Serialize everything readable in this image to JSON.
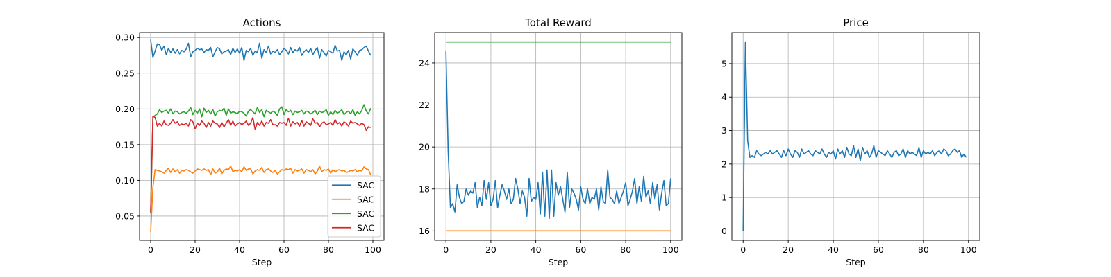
{
  "figure": {
    "background": "#ffffff"
  },
  "chart_data": [
    {
      "type": "line",
      "title": "Actions",
      "xlabel": "Step",
      "ylabel": "",
      "xlim": [
        -5,
        105
      ],
      "ylim": [
        0.016,
        0.307
      ],
      "xticks": [
        0,
        20,
        40,
        60,
        80,
        100
      ],
      "yticks": [
        0.05,
        0.1,
        0.15,
        0.2,
        0.25,
        0.3
      ],
      "ytick_labels": [
        "0.05",
        "0.10",
        "0.15",
        "0.20",
        "0.25",
        "0.30"
      ],
      "grid": true,
      "legend": {
        "placement": "lower-right",
        "entries": [
          "SAC",
          "SAC",
          "SAC",
          "SAC"
        ]
      },
      "series": [
        {
          "name": "SAC",
          "color": "#1f77b4",
          "x_start": 0,
          "x_step": 1,
          "values": [
            0.297,
            0.272,
            0.281,
            0.291,
            0.29,
            0.282,
            0.288,
            0.276,
            0.285,
            0.279,
            0.284,
            0.278,
            0.283,
            0.277,
            0.282,
            0.28,
            0.284,
            0.292,
            0.273,
            0.28,
            0.282,
            0.285,
            0.283,
            0.284,
            0.279,
            0.283,
            0.282,
            0.286,
            0.273,
            0.28,
            0.286,
            0.284,
            0.277,
            0.28,
            0.281,
            0.283,
            0.276,
            0.285,
            0.279,
            0.284,
            0.278,
            0.286,
            0.268,
            0.282,
            0.28,
            0.285,
            0.275,
            0.281,
            0.279,
            0.292,
            0.271,
            0.283,
            0.279,
            0.288,
            0.277,
            0.281,
            0.279,
            0.283,
            0.276,
            0.28,
            0.285,
            0.282,
            0.277,
            0.286,
            0.279,
            0.283,
            0.281,
            0.286,
            0.275,
            0.28,
            0.283,
            0.279,
            0.285,
            0.276,
            0.282,
            0.286,
            0.271,
            0.283,
            0.279,
            0.274,
            0.282,
            0.28,
            0.278,
            0.289,
            0.281,
            0.282,
            0.268,
            0.28,
            0.276,
            0.282,
            0.27,
            0.284,
            0.28,
            0.275,
            0.282,
            0.283,
            0.286,
            0.288,
            0.281,
            0.275
          ]
        },
        {
          "name": "SAC",
          "color": "#ff7f0e",
          "x_start": 0,
          "x_step": 1,
          "values": [
            0.028,
            0.09,
            0.115,
            0.114,
            0.113,
            0.112,
            0.11,
            0.114,
            0.117,
            0.111,
            0.116,
            0.112,
            0.115,
            0.11,
            0.114,
            0.113,
            0.115,
            0.114,
            0.112,
            0.11,
            0.113,
            0.116,
            0.115,
            0.114,
            0.116,
            0.114,
            0.115,
            0.108,
            0.116,
            0.11,
            0.112,
            0.117,
            0.109,
            0.114,
            0.116,
            0.115,
            0.12,
            0.112,
            0.114,
            0.113,
            0.115,
            0.112,
            0.119,
            0.114,
            0.116,
            0.116,
            0.109,
            0.113,
            0.115,
            0.114,
            0.118,
            0.111,
            0.115,
            0.116,
            0.113,
            0.111,
            0.114,
            0.109,
            0.112,
            0.115,
            0.114,
            0.116,
            0.115,
            0.117,
            0.11,
            0.115,
            0.113,
            0.114,
            0.116,
            0.11,
            0.115,
            0.114,
            0.112,
            0.115,
            0.109,
            0.113,
            0.12,
            0.112,
            0.115,
            0.114,
            0.116,
            0.11,
            0.115,
            0.112,
            0.114,
            0.115,
            0.113,
            0.114,
            0.111,
            0.112,
            0.114,
            0.113,
            0.115,
            0.112,
            0.114,
            0.113,
            0.119,
            0.116,
            0.115,
            0.108
          ]
        },
        {
          "name": "SAC",
          "color": "#2ca02c",
          "x_start": 0,
          "x_step": 1,
          "values": [
            0.055,
            0.188,
            0.191,
            0.193,
            0.199,
            0.195,
            0.197,
            0.198,
            0.194,
            0.2,
            0.193,
            0.197,
            0.196,
            0.193,
            0.195,
            0.196,
            0.194,
            0.197,
            0.202,
            0.192,
            0.198,
            0.194,
            0.2,
            0.189,
            0.201,
            0.195,
            0.198,
            0.193,
            0.199,
            0.19,
            0.196,
            0.198,
            0.197,
            0.201,
            0.191,
            0.2,
            0.194,
            0.196,
            0.195,
            0.193,
            0.197,
            0.196,
            0.194,
            0.19,
            0.197,
            0.199,
            0.196,
            0.193,
            0.202,
            0.195,
            0.199,
            0.189,
            0.198,
            0.196,
            0.194,
            0.197,
            0.195,
            0.191,
            0.2,
            0.203,
            0.192,
            0.199,
            0.196,
            0.198,
            0.192,
            0.197,
            0.195,
            0.196,
            0.198,
            0.193,
            0.197,
            0.196,
            0.193,
            0.195,
            0.198,
            0.192,
            0.197,
            0.195,
            0.196,
            0.199,
            0.191,
            0.196,
            0.192,
            0.198,
            0.194,
            0.196,
            0.199,
            0.192,
            0.195,
            0.197,
            0.193,
            0.199,
            0.191,
            0.196,
            0.193,
            0.198,
            0.206,
            0.197,
            0.193,
            0.201
          ]
        },
        {
          "name": "SAC",
          "color": "#d62728",
          "x_start": 0,
          "x_step": 1,
          "values": [
            0.055,
            0.19,
            0.188,
            0.176,
            0.18,
            0.176,
            0.183,
            0.178,
            0.177,
            0.18,
            0.185,
            0.18,
            0.182,
            0.177,
            0.179,
            0.178,
            0.18,
            0.176,
            0.185,
            0.182,
            0.172,
            0.18,
            0.177,
            0.183,
            0.18,
            0.174,
            0.181,
            0.176,
            0.183,
            0.18,
            0.179,
            0.174,
            0.181,
            0.175,
            0.18,
            0.185,
            0.177,
            0.183,
            0.176,
            0.179,
            0.181,
            0.178,
            0.18,
            0.183,
            0.177,
            0.18,
            0.188,
            0.171,
            0.181,
            0.177,
            0.183,
            0.176,
            0.181,
            0.18,
            0.185,
            0.178,
            0.178,
            0.176,
            0.181,
            0.18,
            0.181,
            0.177,
            0.187,
            0.176,
            0.182,
            0.179,
            0.181,
            0.176,
            0.184,
            0.176,
            0.182,
            0.18,
            0.177,
            0.186,
            0.18,
            0.181,
            0.175,
            0.18,
            0.182,
            0.178,
            0.179,
            0.181,
            0.177,
            0.185,
            0.179,
            0.181,
            0.176,
            0.182,
            0.18,
            0.176,
            0.183,
            0.18,
            0.181,
            0.179,
            0.177,
            0.18,
            0.178,
            0.17,
            0.175,
            0.174
          ]
        }
      ]
    },
    {
      "type": "line",
      "title": "Total Reward",
      "xlabel": "Step",
      "ylabel": "",
      "xlim": [
        -5,
        105
      ],
      "ylim": [
        15.55,
        25.45
      ],
      "xticks": [
        0,
        20,
        40,
        60,
        80,
        100
      ],
      "yticks": [
        16,
        18,
        20,
        22,
        24
      ],
      "ytick_labels": [
        "16",
        "18",
        "20",
        "22",
        "24"
      ],
      "grid": true,
      "series": [
        {
          "name": "",
          "color": "#1f77b4",
          "x_start": 0,
          "x_step": 1,
          "values": [
            24.55,
            19.8,
            17.1,
            17.3,
            16.9,
            18.2,
            17.6,
            17.3,
            17.4,
            18.0,
            17.7,
            17.9,
            17.8,
            18.3,
            17.1,
            17.6,
            17.2,
            18.4,
            17.5,
            18.3,
            17.2,
            17.5,
            18.4,
            17.1,
            17.7,
            18.2,
            17.9,
            17.5,
            18.0,
            17.3,
            17.5,
            18.5,
            18.0,
            17.3,
            17.9,
            17.6,
            16.7,
            18.5,
            17.4,
            17.6,
            17.5,
            18.3,
            16.8,
            18.8,
            16.7,
            18.9,
            16.6,
            18.9,
            16.7,
            18.3,
            17.7,
            18.1,
            17.5,
            16.9,
            18.8,
            17.1,
            18.0,
            17.8,
            17.5,
            17.0,
            18.1,
            17.5,
            17.3,
            18.0,
            17.3,
            17.6,
            17.5,
            18.0,
            17.0,
            18.1,
            17.4,
            17.3,
            18.9,
            17.6,
            17.5,
            17.3,
            17.9,
            17.3,
            17.6,
            17.9,
            18.3,
            17.2,
            17.5,
            17.9,
            18.5,
            17.3,
            18.1,
            17.4,
            18.6,
            17.6,
            17.9,
            17.3,
            18.3,
            17.5,
            18.2,
            17.0,
            17.8,
            18.4,
            17.2,
            17.3,
            18.5
          ]
        },
        {
          "name": "",
          "color": "#ff7f0e",
          "x_start": 0,
          "x_step": 100,
          "values": [
            16.0,
            16.0
          ]
        },
        {
          "name": "",
          "color": "#2ca02c",
          "x_start": 0,
          "x_step": 100,
          "values": [
            25.0,
            25.0
          ]
        }
      ]
    },
    {
      "type": "line",
      "title": "Price",
      "xlabel": "Step",
      "ylabel": "",
      "xlim": [
        -5,
        105
      ],
      "ylim": [
        -0.28,
        5.93
      ],
      "xticks": [
        0,
        20,
        40,
        60,
        80,
        100
      ],
      "yticks": [
        0,
        1,
        2,
        3,
        4,
        5
      ],
      "ytick_labels": [
        "0",
        "1",
        "2",
        "3",
        "4",
        "5"
      ],
      "grid": true,
      "series": [
        {
          "name": "",
          "color": "#1f77b4",
          "x_start": 0,
          "x_step": 1,
          "values": [
            0.0,
            5.65,
            2.7,
            2.2,
            2.25,
            2.2,
            2.4,
            2.3,
            2.25,
            2.3,
            2.35,
            2.3,
            2.4,
            2.3,
            2.35,
            2.4,
            2.3,
            2.2,
            2.4,
            2.25,
            2.45,
            2.3,
            2.2,
            2.4,
            2.35,
            2.2,
            2.45,
            2.3,
            2.35,
            2.4,
            2.3,
            2.25,
            2.4,
            2.35,
            2.3,
            2.45,
            2.3,
            2.2,
            2.35,
            2.3,
            2.4,
            2.15,
            2.45,
            2.3,
            2.4,
            2.2,
            2.5,
            2.3,
            2.25,
            2.55,
            2.2,
            2.45,
            2.1,
            2.5,
            2.3,
            2.4,
            2.2,
            2.3,
            2.55,
            2.2,
            2.4,
            2.35,
            2.3,
            2.25,
            2.4,
            2.3,
            2.2,
            2.35,
            2.4,
            2.25,
            2.3,
            2.45,
            2.2,
            2.4,
            2.3,
            2.35,
            2.3,
            2.25,
            2.5,
            2.2,
            2.4,
            2.3,
            2.35,
            2.3,
            2.4,
            2.25,
            2.35,
            2.4,
            2.3,
            2.45,
            2.4,
            2.25,
            2.3,
            2.4,
            2.45,
            2.35,
            2.4,
            2.2,
            2.3,
            2.2
          ]
        }
      ]
    }
  ]
}
